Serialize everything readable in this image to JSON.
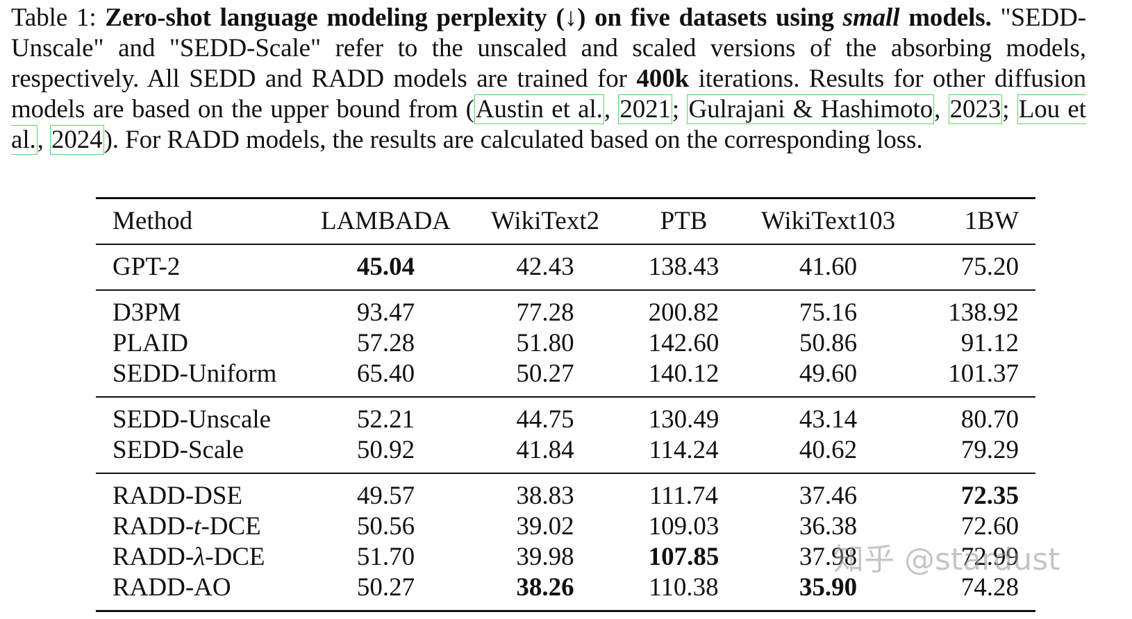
{
  "caption": {
    "label": "Table 1:",
    "bold_part1": "Zero-shot language modeling perplexity (↓) on five datasets using",
    "bold_italic": "small",
    "bold_part2": "models.",
    "text1": "\"SEDD-Unscale\" and \"SEDD-Scale\" refer to the unscaled and scaled versions of the absorbing models, respectively. All SEDD and RADD models are trained for",
    "bold_400k": "400k",
    "text2": "iterations. Results for other diffusion models are based on the upper bound from  (",
    "cite1_name": "Austin et al.",
    "cite1_year": "2021",
    "cite2_name": "Gulrajani & Hashimoto",
    "cite2_year": "2023",
    "cite3_name": "Lou et al.",
    "cite3_year": "2024",
    "text3": "). For RADD models, the results are calculated based on the corresponding loss."
  },
  "table": {
    "headers": [
      "Method",
      "LAMBADA",
      "WikiText2",
      "PTB",
      "WikiText103",
      "1BW"
    ],
    "groups": [
      [
        {
          "method": "GPT-2",
          "values": [
            "45.04",
            "42.43",
            "138.43",
            "41.60",
            "75.20"
          ]
        }
      ],
      [
        {
          "method": "D3PM",
          "values": [
            "93.47",
            "77.28",
            "200.82",
            "75.16",
            "138.92"
          ]
        },
        {
          "method": "PLAID",
          "values": [
            "57.28",
            "51.80",
            "142.60",
            "50.86",
            "91.12"
          ]
        },
        {
          "method": "SEDD-Uniform",
          "values": [
            "65.40",
            "50.27",
            "140.12",
            "49.60",
            "101.37"
          ]
        }
      ],
      [
        {
          "method": "SEDD-Unscale",
          "values": [
            "52.21",
            "44.75",
            "130.49",
            "43.14",
            "80.70"
          ]
        },
        {
          "method": "SEDD-Scale",
          "values": [
            "50.92",
            "41.84",
            "114.24",
            "40.62",
            "79.29"
          ]
        }
      ],
      [
        {
          "method": "RADD-DSE",
          "values": [
            "49.57",
            "38.83",
            "111.74",
            "37.46",
            "72.35"
          ]
        },
        {
          "method_prefix": "RADD-",
          "method_symbol": "t",
          "method_suffix": "-DCE",
          "values": [
            "50.56",
            "39.02",
            "109.03",
            "36.38",
            "72.60"
          ]
        },
        {
          "method_prefix": "RADD-",
          "method_symbol": "λ",
          "method_suffix": "-DCE",
          "values": [
            "51.70",
            "39.98",
            "107.85",
            "37.98",
            "72.99"
          ]
        },
        {
          "method": "RADD-AO",
          "values": [
            "50.27",
            "38.26",
            "110.38",
            "35.90",
            "74.28"
          ]
        }
      ]
    ]
  },
  "watermark": "知乎 @stardust"
}
